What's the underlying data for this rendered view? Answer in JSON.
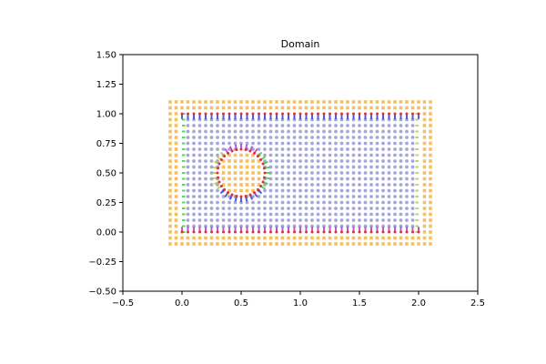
{
  "chart_data": {
    "type": "scatter",
    "title": "Domain",
    "xlabel": "",
    "ylabel": "",
    "xlim": [
      -0.5,
      2.5
    ],
    "ylim": [
      -0.5,
      1.5
    ],
    "xticks": [
      "−0.5",
      "0.0",
      "0.5",
      "1.0",
      "1.5",
      "2.0",
      "2.5"
    ],
    "yticks": [
      "−0.50",
      "−0.25",
      "0.00",
      "0.25",
      "0.50",
      "0.75",
      "1.00",
      "1.25",
      "1.50"
    ],
    "grid": false,
    "legend": "none",
    "domain": {
      "rect_x": [
        0.0,
        2.0
      ],
      "rect_y": [
        0.0,
        1.0
      ],
      "grid_spacing": 0.05,
      "hole_center": [
        0.5,
        0.5
      ],
      "hole_radius": 0.2,
      "ghost_layers": 2
    },
    "colors": {
      "interior": "#8888cc",
      "ghost": "#f5c060",
      "top_normals": "#2233dd",
      "bottom_normals": "#aa33cc",
      "left_normals": "#33cc33",
      "right_normals": "#aacc33",
      "boundary_points": "#dd3333"
    }
  }
}
